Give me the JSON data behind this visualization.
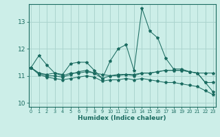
{
  "xlabel": "Humidex (Indice chaleur)",
  "background_color": "#cceee8",
  "grid_color": "#aad4ce",
  "line_color": "#1a6b60",
  "x_values": [
    0,
    1,
    2,
    3,
    4,
    5,
    6,
    7,
    8,
    9,
    10,
    11,
    12,
    13,
    14,
    15,
    16,
    17,
    18,
    19,
    20,
    21,
    22,
    23
  ],
  "series": [
    [
      11.3,
      11.75,
      11.4,
      11.1,
      11.05,
      11.45,
      11.5,
      11.5,
      11.2,
      10.9,
      11.55,
      12.0,
      12.15,
      11.2,
      13.5,
      12.65,
      12.4,
      11.65,
      11.25,
      11.25,
      11.15,
      11.1,
      10.75,
      10.75
    ],
    [
      11.3,
      11.1,
      11.05,
      11.1,
      11.0,
      11.1,
      11.1,
      11.15,
      11.1,
      11.05,
      11.0,
      11.05,
      11.05,
      11.05,
      11.1,
      11.1,
      11.15,
      11.2,
      11.2,
      11.2,
      11.15,
      11.1,
      11.1,
      11.1
    ],
    [
      11.3,
      11.1,
      11.0,
      11.0,
      10.95,
      11.05,
      11.15,
      11.2,
      11.1,
      10.9,
      11.0,
      11.0,
      11.05,
      11.0,
      11.1,
      11.1,
      11.15,
      11.2,
      11.2,
      11.2,
      11.15,
      11.1,
      10.75,
      10.4
    ],
    [
      11.3,
      11.05,
      10.95,
      10.9,
      10.85,
      10.9,
      10.95,
      11.0,
      10.95,
      10.8,
      10.85,
      10.85,
      10.9,
      10.85,
      10.9,
      10.85,
      10.8,
      10.75,
      10.75,
      10.7,
      10.65,
      10.6,
      10.45,
      10.3
    ]
  ],
  "ylim": [
    9.85,
    13.65
  ],
  "yticks": [
    10,
    11,
    12,
    13
  ],
  "xticks": [
    0,
    1,
    2,
    3,
    4,
    5,
    6,
    7,
    8,
    9,
    10,
    11,
    12,
    13,
    14,
    15,
    16,
    17,
    18,
    19,
    20,
    21,
    22,
    23
  ]
}
